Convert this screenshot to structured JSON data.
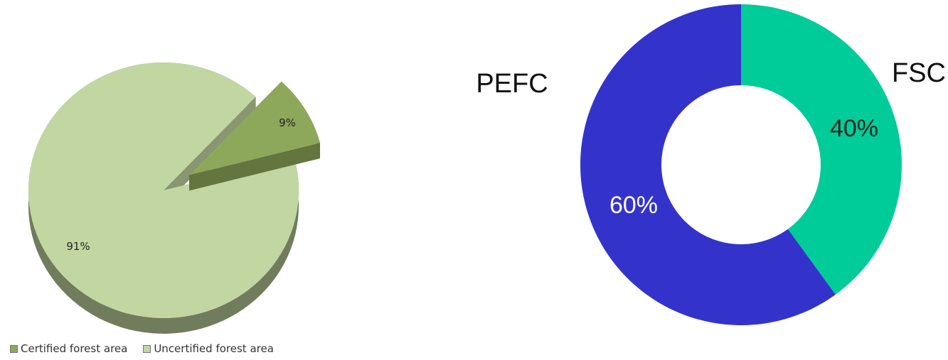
{
  "chart_data": [
    {
      "type": "pie",
      "title": "",
      "categories": [
        "Certified forest area",
        "Uncertified forest area"
      ],
      "values": [
        9,
        91
      ],
      "labels": [
        "9%",
        "91%"
      ],
      "colors": [
        "#8da85a",
        "#c2d6a1"
      ],
      "exploded": "Certified forest area",
      "style": "3d",
      "legend": "bottom-left"
    },
    {
      "type": "pie",
      "subtype": "donut",
      "title": "",
      "categories": [
        "FSC",
        "PEFC"
      ],
      "values": [
        40,
        60
      ],
      "labels": [
        "40%",
        "60%"
      ],
      "colors": [
        "#00cc99",
        "#3333cc"
      ],
      "legend": "none"
    }
  ]
}
